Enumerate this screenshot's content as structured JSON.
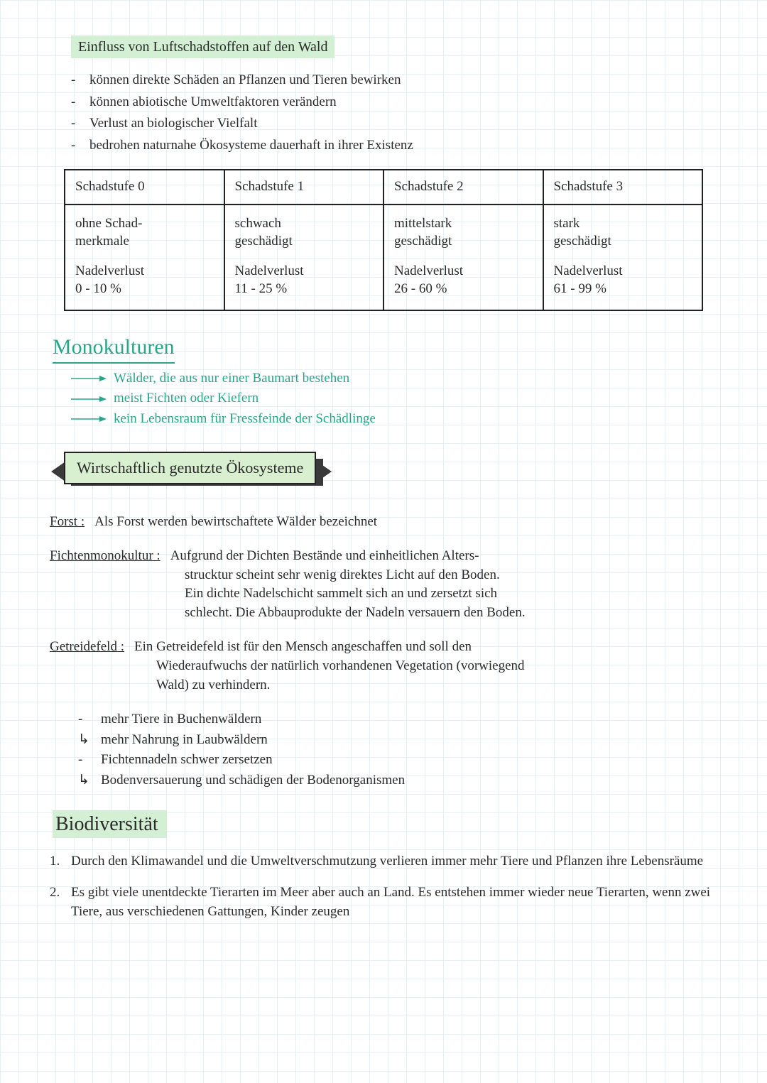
{
  "colors": {
    "text": "#2a2a2a",
    "grid": "#e8f0f3",
    "highlight": "#d4f0d4",
    "teal": "#2aa58a",
    "table_border": "#222222",
    "banner_fill": "#d8f0cf",
    "banner_shadow": "#3a3a3a"
  },
  "title": "Einfluss von Luftschadstoffen auf den Wald",
  "bullets": [
    "können direkte Schäden an Pflanzen und Tieren bewirken",
    "können abiotische Umweltfaktoren verändern",
    "Verlust an biologischer Vielfalt",
    "bedrohen naturnahe Ökosysteme dauerhaft in ihrer Existenz"
  ],
  "table": {
    "cols": [
      {
        "head": "Schadstufe 0",
        "desc1": "ohne Schad-",
        "desc2": "merkmale",
        "loss1": "Nadelverlust",
        "loss2": "0 - 10 %"
      },
      {
        "head": "Schadstufe 1",
        "desc1": "schwach",
        "desc2": "geschädigt",
        "loss1": "Nadelverlust",
        "loss2": "11 - 25 %"
      },
      {
        "head": "Schadstufe 2",
        "desc1": "mittelstark",
        "desc2": "geschädigt",
        "loss1": "Nadelverlust",
        "loss2": "26 - 60 %"
      },
      {
        "head": "Schadstufe 3",
        "desc1": "stark",
        "desc2": "geschädigt",
        "loss1": "Nadelverlust",
        "loss2": "61 - 99 %"
      }
    ]
  },
  "mono": {
    "title": "Monokulturen",
    "items": [
      "Wälder, die aus nur einer Baumart bestehen",
      "meist Fichten oder Kiefern",
      "kein Lebensraum für Fressfeinde der Schädlinge"
    ]
  },
  "banner": "Wirtschaftlich genutzte Ökosysteme",
  "defs": {
    "forst": {
      "term": "Forst :",
      "body": "Als Forst werden bewirtschaftete Wälder bezeichnet"
    },
    "fichten": {
      "term": "Fichtenmonokultur :",
      "l1": "Aufgrund der Dichten Bestände und einheitlichen Alters-",
      "l2": "strucktur scheint sehr wenig direktes Licht auf den Boden.",
      "l3": "Ein dichte Nadelschicht sammelt sich an und zersetzt sich",
      "l4": "schlecht. Die Abbauprodukte der Nadeln versauern den Boden."
    },
    "getreide": {
      "term": "Getreidefeld :",
      "l1": "Ein Getreidefeld ist für den Mensch angeschaffen und soll den",
      "l2": "Wiederaufwuchs der natürlich vorhandenen Vegetation (vorwiegend",
      "l3": "Wald) zu verhindern."
    }
  },
  "bullets2": [
    {
      "mark": "-",
      "text": "mehr Tiere in Buchenwäldern"
    },
    {
      "mark": "↳",
      "text": "mehr Nahrung in Laubwäldern"
    },
    {
      "mark": "-",
      "text": "Fichtennadeln schwer zersetzen"
    },
    {
      "mark": "↳",
      "text": "Bodenversauerung und schädigen der Bodenorganismen"
    }
  ],
  "bio": {
    "title": "Biodiversität",
    "items": [
      {
        "n": "1.",
        "text": "Durch den Klimawandel und die Umweltverschmutzung verlieren immer mehr Tiere und Pflanzen ihre Lebensräume"
      },
      {
        "n": "2.",
        "text": "Es gibt viele unentdeckte Tierarten im Meer aber auch an Land. Es entstehen immer wieder neue Tierarten, wenn zwei Tiere, aus verschiedenen Gattungen, Kinder zeugen"
      }
    ]
  }
}
